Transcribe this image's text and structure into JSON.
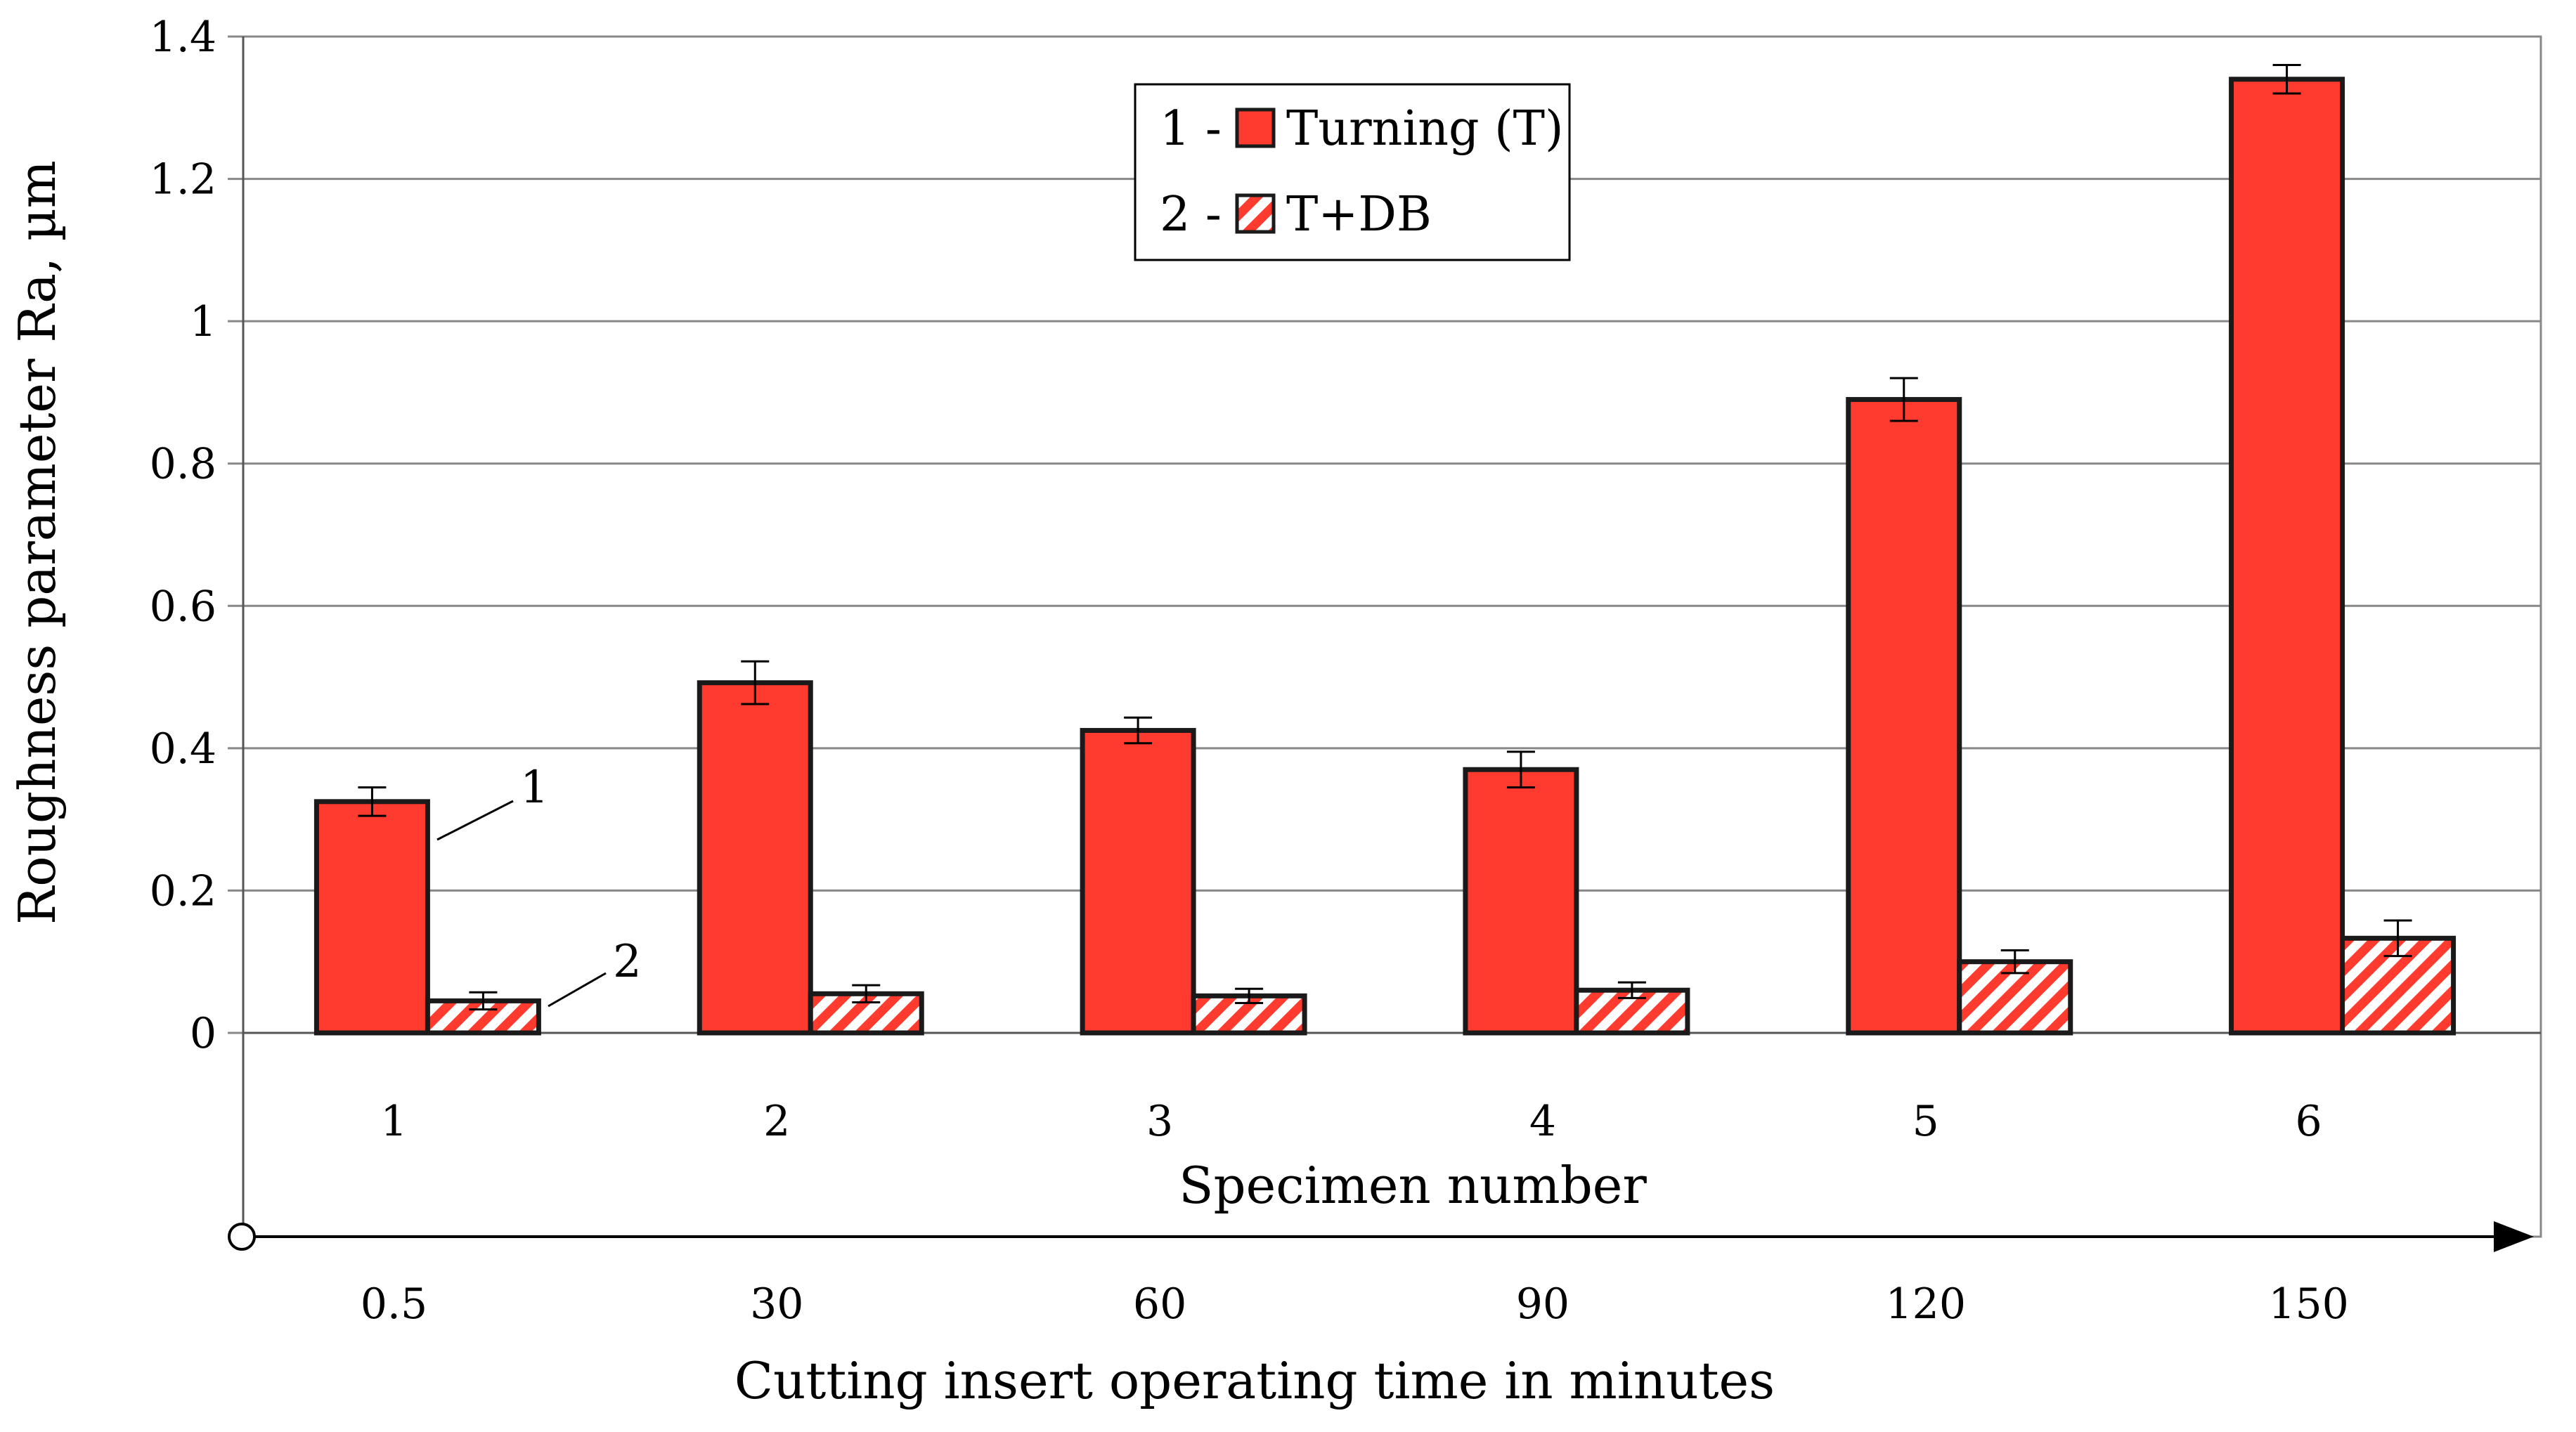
{
  "chart_data": {
    "type": "bar",
    "title": "",
    "categories": [
      "1",
      "2",
      "3",
      "4",
      "5",
      "6"
    ],
    "secondary_x": {
      "label": "Cutting insert operating time in minutes",
      "values": [
        "0.5",
        "30",
        "60",
        "90",
        "120",
        "150"
      ]
    },
    "series": [
      {
        "name": "Turning (T)",
        "legend_prefix": "1 -",
        "fill": "solid",
        "values": [
          0.325,
          0.492,
          0.425,
          0.37,
          0.89,
          1.34
        ],
        "errors": [
          0.02,
          0.03,
          0.018,
          0.025,
          0.03,
          0.02
        ]
      },
      {
        "name": "T+DB",
        "legend_prefix": "2 -",
        "fill": "hatched",
        "values": [
          0.045,
          0.055,
          0.052,
          0.06,
          0.1,
          0.133
        ],
        "errors": [
          0.012,
          0.012,
          0.01,
          0.011,
          0.016,
          0.025
        ]
      }
    ],
    "xlabel": "Specimen number",
    "ylabel": "Roughness parameter Ra, µm",
    "ylim": [
      0,
      1.4
    ],
    "yticks": [
      "0",
      "0.2",
      "0.4",
      "0.6",
      "0.8",
      "1",
      "1.2",
      "1.4"
    ],
    "grid": true,
    "legend_position": "top-center",
    "callouts": [
      "1",
      "2"
    ],
    "colors": {
      "bar": "#ff3b2f",
      "outline": "#1a1a1a",
      "grid": "#888888"
    }
  }
}
